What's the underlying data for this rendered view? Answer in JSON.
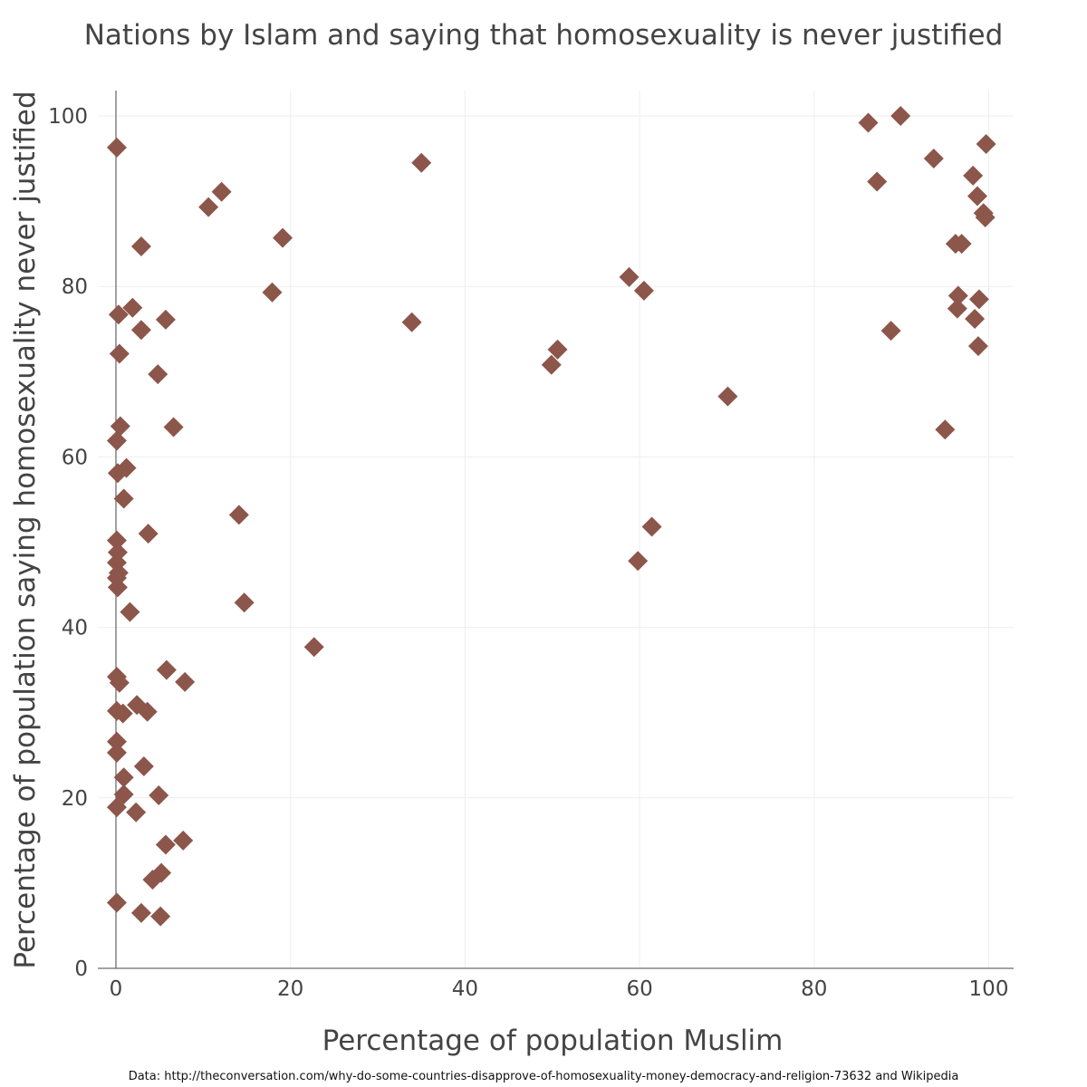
{
  "chart_data": {
    "type": "scatter",
    "title": "Nations by Islam and saying that homosexuality is never justified",
    "xlabel": "Percentage of population Muslim",
    "ylabel": "Percentage of population saying homosexuality never justified",
    "xlim": [
      -2,
      103
    ],
    "ylim": [
      0,
      103
    ],
    "xticks": [
      0,
      20,
      40,
      60,
      80,
      100
    ],
    "yticks": [
      0,
      20,
      40,
      60,
      80,
      100
    ],
    "grid": true,
    "marker": "diamond",
    "marker_color": "#8c564b",
    "source": "Data: http://theconversation.com/why-do-some-countries-disapprove-of-homosexuality-money-democracy-and-religion-73632 and Wikipedia",
    "points": [
      {
        "x": 0.1,
        "y": 96.3
      },
      {
        "x": 0.3,
        "y": 76.7
      },
      {
        "x": 0.4,
        "y": 72.1
      },
      {
        "x": 0.5,
        "y": 63.6
      },
      {
        "x": 0.1,
        "y": 61.9
      },
      {
        "x": 0.2,
        "y": 58.1
      },
      {
        "x": 1.2,
        "y": 58.7
      },
      {
        "x": 0.9,
        "y": 55.1
      },
      {
        "x": 0.1,
        "y": 50.2
      },
      {
        "x": 0.2,
        "y": 48.8
      },
      {
        "x": 0.1,
        "y": 47.6
      },
      {
        "x": 0.3,
        "y": 46.4
      },
      {
        "x": 0.1,
        "y": 45.8
      },
      {
        "x": 0.2,
        "y": 44.7
      },
      {
        "x": 1.6,
        "y": 41.8
      },
      {
        "x": 0.1,
        "y": 34.2
      },
      {
        "x": 0.4,
        "y": 33.5
      },
      {
        "x": 0.1,
        "y": 30.2
      },
      {
        "x": 0.8,
        "y": 29.9
      },
      {
        "x": 0.1,
        "y": 26.6
      },
      {
        "x": 0.1,
        "y": 25.3
      },
      {
        "x": 0.9,
        "y": 22.4
      },
      {
        "x": 0.9,
        "y": 20.4
      },
      {
        "x": 0.1,
        "y": 18.9
      },
      {
        "x": 0.1,
        "y": 7.7
      },
      {
        "x": 1.9,
        "y": 77.5
      },
      {
        "x": 2.9,
        "y": 84.7
      },
      {
        "x": 2.9,
        "y": 74.9
      },
      {
        "x": 4.8,
        "y": 69.7
      },
      {
        "x": 5.7,
        "y": 76.1
      },
      {
        "x": 6.6,
        "y": 63.5
      },
      {
        "x": 3.7,
        "y": 51.0
      },
      {
        "x": 2.4,
        "y": 30.9
      },
      {
        "x": 3.6,
        "y": 30.1
      },
      {
        "x": 3.2,
        "y": 23.7
      },
      {
        "x": 2.3,
        "y": 18.3
      },
      {
        "x": 4.9,
        "y": 20.3
      },
      {
        "x": 5.8,
        "y": 35.0
      },
      {
        "x": 7.9,
        "y": 33.6
      },
      {
        "x": 5.7,
        "y": 14.5
      },
      {
        "x": 7.7,
        "y": 15.0
      },
      {
        "x": 4.2,
        "y": 10.4
      },
      {
        "x": 5.2,
        "y": 11.2
      },
      {
        "x": 2.9,
        "y": 6.5
      },
      {
        "x": 5.1,
        "y": 6.1
      },
      {
        "x": 10.6,
        "y": 89.3
      },
      {
        "x": 12.1,
        "y": 91.1
      },
      {
        "x": 19.1,
        "y": 85.7
      },
      {
        "x": 17.9,
        "y": 79.3
      },
      {
        "x": 14.1,
        "y": 53.2
      },
      {
        "x": 14.7,
        "y": 42.9
      },
      {
        "x": 22.7,
        "y": 37.7
      },
      {
        "x": 35.0,
        "y": 94.5
      },
      {
        "x": 33.9,
        "y": 75.8
      },
      {
        "x": 49.9,
        "y": 70.8
      },
      {
        "x": 50.6,
        "y": 72.6
      },
      {
        "x": 58.8,
        "y": 81.1
      },
      {
        "x": 60.5,
        "y": 79.5
      },
      {
        "x": 70.1,
        "y": 67.1
      },
      {
        "x": 61.4,
        "y": 51.8
      },
      {
        "x": 59.8,
        "y": 47.8
      },
      {
        "x": 86.2,
        "y": 99.2
      },
      {
        "x": 89.9,
        "y": 100.0
      },
      {
        "x": 87.2,
        "y": 92.3
      },
      {
        "x": 93.7,
        "y": 95.0
      },
      {
        "x": 99.7,
        "y": 96.7
      },
      {
        "x": 98.2,
        "y": 93.0
      },
      {
        "x": 98.7,
        "y": 90.6
      },
      {
        "x": 99.6,
        "y": 88.1
      },
      {
        "x": 99.4,
        "y": 88.6
      },
      {
        "x": 96.2,
        "y": 85.0
      },
      {
        "x": 96.9,
        "y": 85.0
      },
      {
        "x": 96.5,
        "y": 78.9
      },
      {
        "x": 96.4,
        "y": 77.4
      },
      {
        "x": 98.9,
        "y": 78.5
      },
      {
        "x": 98.4,
        "y": 76.2
      },
      {
        "x": 88.8,
        "y": 74.8
      },
      {
        "x": 98.8,
        "y": 73.0
      },
      {
        "x": 95.0,
        "y": 63.2
      }
    ]
  }
}
